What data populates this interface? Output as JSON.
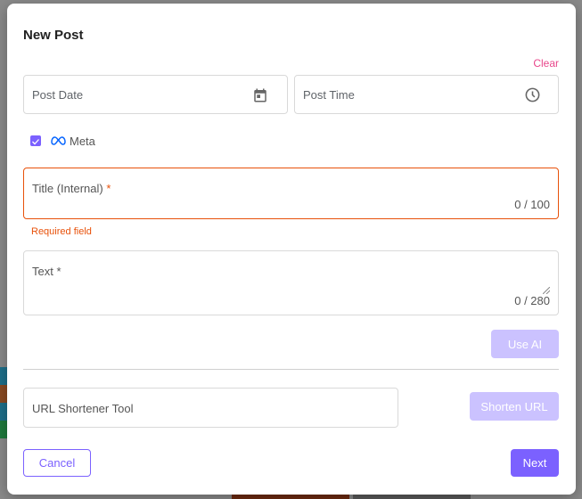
{
  "modal": {
    "title": "New Post",
    "clear_label": "Clear",
    "post_date_placeholder": "Post Date",
    "post_time_placeholder": "Post Time",
    "platform": {
      "label": "Meta",
      "checked": true,
      "icon": "meta-icon"
    },
    "title_field": {
      "label": "Title (Internal)",
      "required_mark": "*",
      "counter": "0 / 100",
      "error": "Required field"
    },
    "text_field": {
      "label": "Text *",
      "counter": "0 / 280"
    },
    "use_ai_label": "Use AI",
    "url_shortener_placeholder": "URL Shortener Tool",
    "shorten_url_label": "Shorten URL",
    "cancel_label": "Cancel",
    "next_label": "Next"
  },
  "colors": {
    "accent": "#7b61ff",
    "error": "#e8510a",
    "clear": "#e8478b",
    "disabled": "#cbc2ff"
  }
}
